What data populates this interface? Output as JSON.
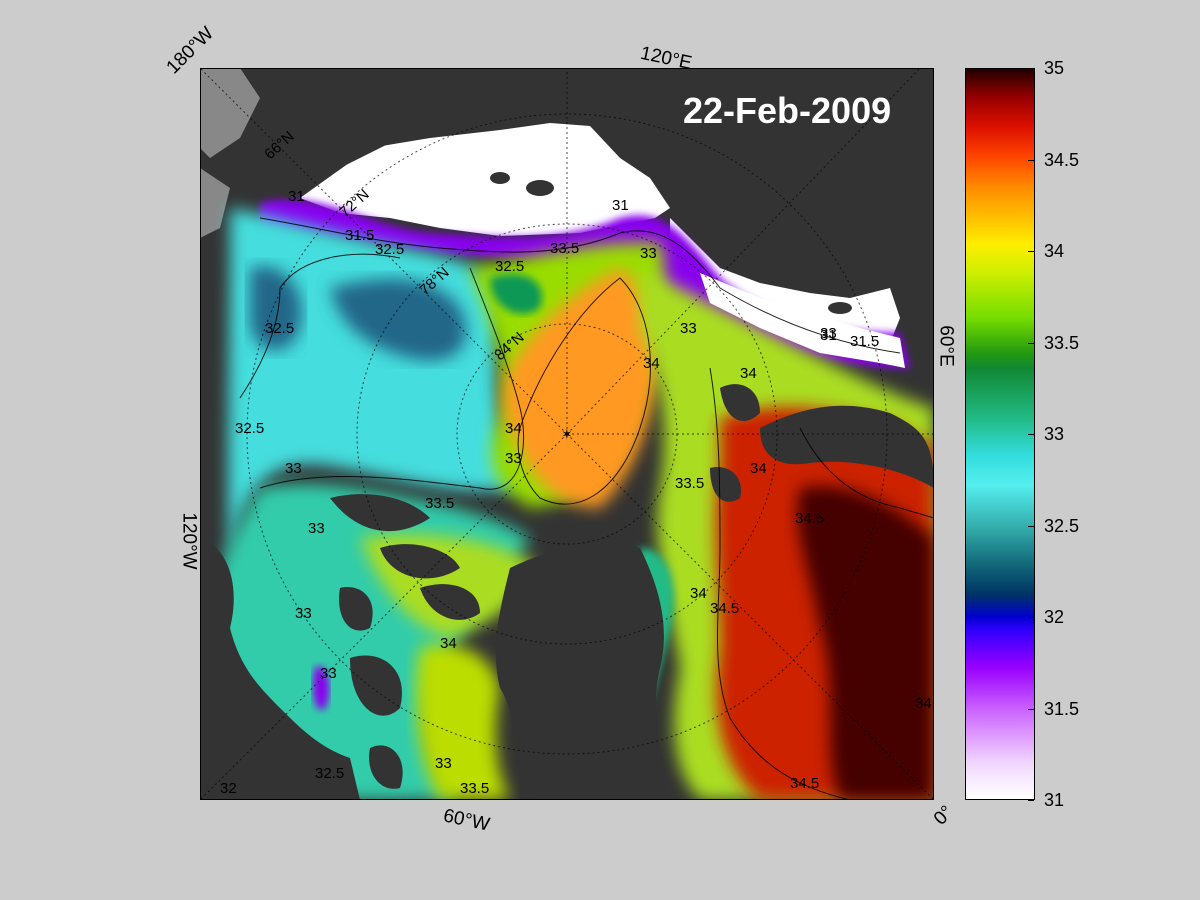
{
  "title": "22-Feb-2009",
  "corner_labels": {
    "top_left": "180°W",
    "top": "120°E",
    "right": "60°E",
    "left": "120°W",
    "bottom": "60°W",
    "bottom_right": "0°"
  },
  "latitude_labels": [
    "66°N",
    "72°N",
    "78°N",
    "84°N"
  ],
  "contour_labels": [
    "31",
    "31.5",
    "32",
    "32.5",
    "33",
    "33.5",
    "34",
    "34.5"
  ],
  "colorbar": {
    "min": 31,
    "max": 35,
    "ticks": [
      "35",
      "34.5",
      "34",
      "33.5",
      "33",
      "32.5",
      "32",
      "31.5",
      "31"
    ]
  },
  "colors": {
    "background": "#cccccc",
    "land": "#333333",
    "ice": "#ffffff",
    "frame": "#000000"
  }
}
